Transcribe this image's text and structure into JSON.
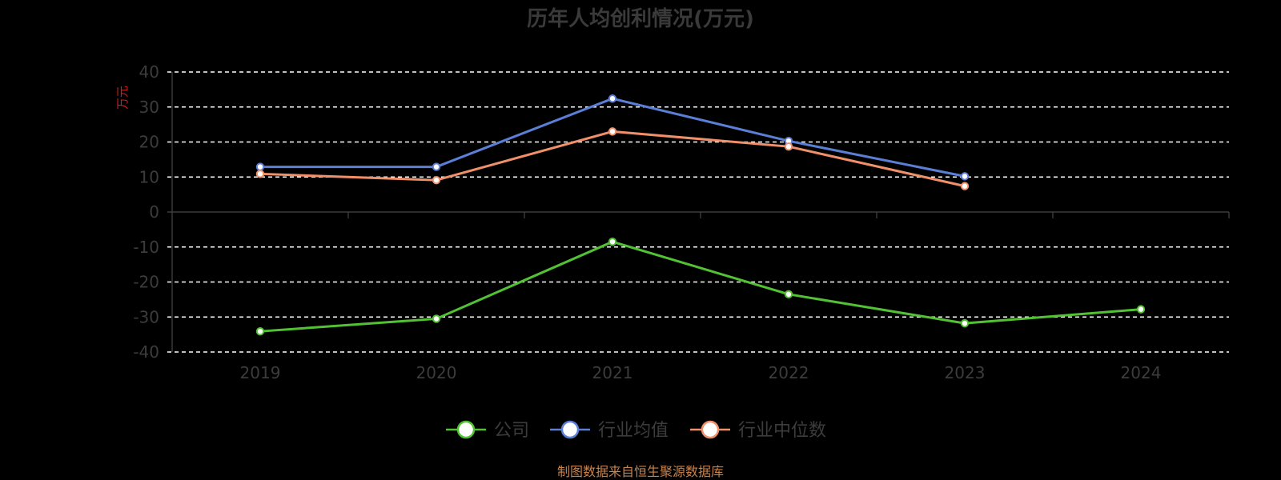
{
  "chart_data": {
    "type": "line",
    "title": "历年人均创利情况(万元)",
    "ylabel": "万元",
    "xlabel": "",
    "categories": [
      "2019",
      "2020",
      "2021",
      "2022",
      "2023",
      "2024"
    ],
    "ylim": [
      -40,
      40
    ],
    "yticks": [
      40,
      30,
      20,
      10,
      0,
      -10,
      -20,
      -30,
      -40
    ],
    "grid": true,
    "legend_position": "bottom-center",
    "series": [
      {
        "name": "公司",
        "color": "#52c234",
        "values": [
          -34.1,
          -30.5,
          -8.5,
          -23.5,
          -31.8,
          -27.8
        ]
      },
      {
        "name": "行业均值",
        "color": "#5b7fd6",
        "values": [
          12.9,
          12.9,
          32.4,
          20.3,
          10.2,
          null
        ]
      },
      {
        "name": "行业中位数",
        "color": "#f0906a",
        "values": [
          10.9,
          9.1,
          23.0,
          18.7,
          7.4,
          null
        ]
      }
    ]
  },
  "source_note": "制图数据来自恒生聚源数据库"
}
